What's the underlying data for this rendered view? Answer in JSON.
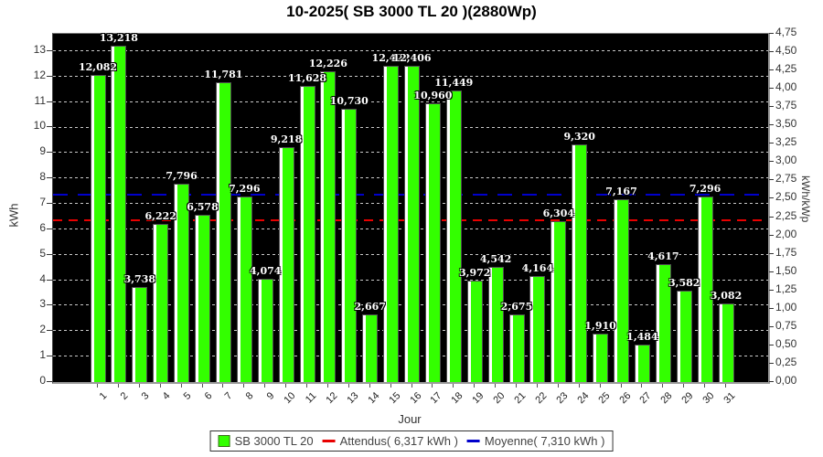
{
  "chart_data": {
    "type": "bar",
    "title": "10-2025( SB 3000 TL 20 )(2880Wp)",
    "xlabel": "Jour",
    "ylabel_left": "kWh",
    "ylabel_right": "kWh/kWp",
    "ylim_left": [
      0,
      13.68
    ],
    "ylim_right": [
      0,
      4.75
    ],
    "grid": "horizontal dashed white lines at each 1 kWh on black plot background",
    "legend_position": "bottom-center",
    "series_name": "SB 3000 TL 20",
    "bar_color": "#33FF00",
    "bar_highlight_color": "#FFFFFF",
    "plot_bg": "#000000",
    "categories": [
      1,
      2,
      3,
      4,
      5,
      6,
      7,
      8,
      9,
      10,
      11,
      12,
      13,
      14,
      15,
      16,
      17,
      18,
      19,
      20,
      21,
      22,
      23,
      24,
      25,
      26,
      27,
      28,
      29,
      30,
      31
    ],
    "values": [
      12.082,
      13.218,
      3.738,
      6.222,
      7.796,
      6.578,
      11.781,
      7.296,
      4.074,
      9.218,
      11.628,
      12.226,
      10.73,
      2.667,
      12.422,
      12.406,
      10.96,
      11.449,
      3.972,
      4.542,
      2.675,
      4.164,
      6.304,
      9.32,
      1.91,
      7.167,
      1.484,
      4.617,
      3.582,
      7.296,
      3.082
    ],
    "value_labels": [
      "12,082",
      "13,218",
      "3,738",
      "6,222",
      "7,796",
      "6,578",
      "11,781",
      "7,296",
      "4,074",
      "9,218",
      "11,628",
      "12,226",
      "10,730",
      "2,667",
      "12,422",
      "12,406",
      "10,960",
      "11,449",
      "3,972",
      "4,542",
      "2,675",
      "4,164",
      "6,304",
      "9,320",
      "1,910",
      "7,167",
      "1,484",
      "4,617",
      "3,582",
      "7,296",
      "3,082"
    ],
    "left_tick_labels": [
      "0",
      "1",
      "2",
      "3",
      "4",
      "5",
      "6",
      "7",
      "8",
      "9",
      "10",
      "11",
      "12",
      "13"
    ],
    "right_tick_labels": [
      "0,00",
      "0,25",
      "0,50",
      "0,75",
      "1,00",
      "1,25",
      "1,50",
      "1,75",
      "2,00",
      "2,25",
      "2,50",
      "2,75",
      "3,00",
      "3,25",
      "3,50",
      "3,75",
      "4,00",
      "4,25",
      "4,50",
      "4,75"
    ],
    "reference_lines": [
      {
        "name": "Attendus",
        "value": 6.317,
        "color": "#E80000",
        "label": "Attendus( 6,317 kWh )"
      },
      {
        "name": "Moyenne",
        "value": 7.31,
        "color": "#0000CC",
        "label": "Moyenne( 7,310 kWh )"
      }
    ],
    "legend": [
      {
        "label": "SB 3000 TL 20",
        "swatch": "green-square"
      },
      {
        "label": "Attendus( 6,317 kWh )",
        "swatch": "red-line"
      },
      {
        "label": "Moyenne( 7,310 kWh )",
        "swatch": "blue-line"
      }
    ]
  }
}
